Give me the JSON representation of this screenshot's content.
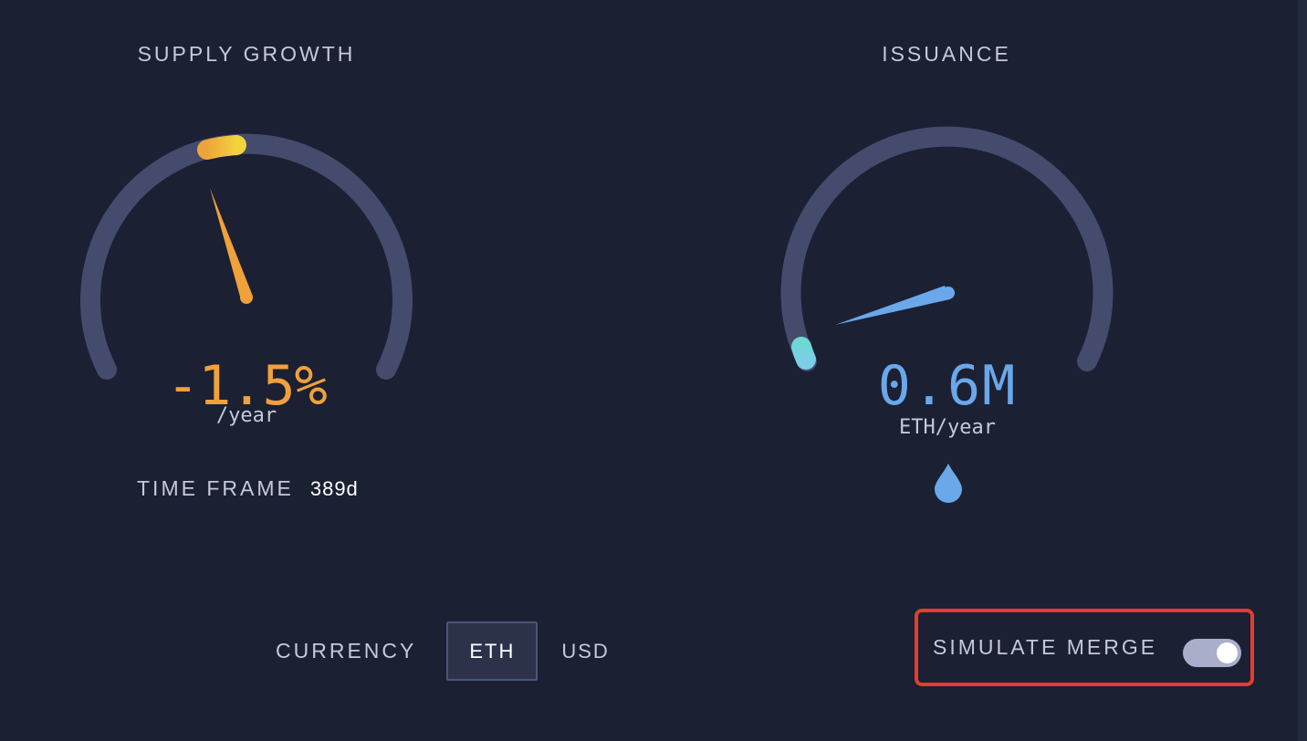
{
  "supply_growth": {
    "title": "SUPPLY GROWTH",
    "value": "-1.5%",
    "unit": "/year",
    "accent_color": "#f0a13a",
    "time_frame_label": "TIME FRAME",
    "time_frame_value": "389d"
  },
  "issuance": {
    "title": "ISSUANCE",
    "value": "0.6M",
    "unit": "ETH/year",
    "accent_color": "#6aa8ea",
    "icon": "drop-icon"
  },
  "currency": {
    "label": "CURRENCY",
    "options": [
      "ETH",
      "USD"
    ],
    "selected": "ETH"
  },
  "simulate_merge": {
    "label": "SIMULATE MERGE",
    "enabled": true
  }
}
